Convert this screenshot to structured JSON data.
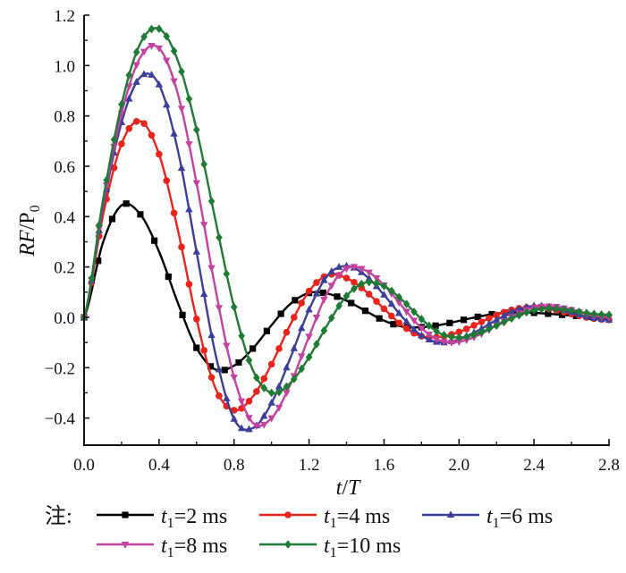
{
  "chart_data": {
    "type": "line",
    "title": "",
    "xlabel": "t/T",
    "ylabel": "RF/P0",
    "xlabel_parts": {
      "italic": "t",
      "slash": "/",
      "italic2": "T"
    },
    "ylabel_parts": {
      "italic": "RF",
      "slash": "/",
      "roman": "P",
      "sub": "0"
    },
    "xlim": [
      0.0,
      2.8
    ],
    "ylim": [
      -0.5,
      1.2
    ],
    "xticks": [
      0.0,
      0.4,
      0.8,
      1.2,
      1.6,
      2.0,
      2.4,
      2.8
    ],
    "xtick_labels": [
      "0.0",
      "0.4",
      "0.8",
      "1.2",
      "1.6",
      "2.0",
      "2.4",
      "2.8"
    ],
    "yticks": [
      -0.4,
      -0.2,
      0.0,
      0.2,
      0.4,
      0.6,
      0.8,
      1.0,
      1.2
    ],
    "ytick_labels": [
      "−0.4",
      "−0.2",
      "0.0",
      "0.2",
      "0.4",
      "0.6",
      "0.8",
      "1.0",
      "1.2"
    ],
    "grid": false,
    "legend_position": "bottom",
    "legend_prefix": "注:",
    "x": [
      0.0,
      0.1,
      0.2,
      0.3,
      0.4,
      0.5,
      0.6,
      0.7,
      0.8,
      0.9,
      1.0,
      1.1,
      1.2,
      1.3,
      1.4,
      1.5,
      1.6,
      1.7,
      1.8,
      1.9,
      2.0,
      2.1,
      2.2,
      2.3,
      2.4,
      2.5,
      2.6,
      2.7,
      2.8
    ],
    "series": [
      {
        "name": "t1=2 ms",
        "label_var": "t",
        "label_sub": "1",
        "label_rest": "=2 ms",
        "color": "#000000",
        "marker": "square",
        "marker_step": 0.075,
        "values": [
          0.0,
          0.295,
          0.445,
          0.409,
          0.261,
          0.058,
          -0.121,
          -0.207,
          -0.192,
          -0.124,
          -0.031,
          0.053,
          0.097,
          0.094,
          0.066,
          0.026,
          -0.013,
          -0.037,
          -0.039,
          -0.03,
          -0.014,
          0.002,
          0.015,
          0.02,
          0.018,
          0.013,
          0.007,
          0.002,
          0.0
        ]
      },
      {
        "name": "t1=4 ms",
        "label_var": "t",
        "label_sub": "1",
        "label_rest": "=4 ms",
        "color": "#e8241c",
        "marker": "circle",
        "marker_step": 0.04,
        "values": [
          0.0,
          0.402,
          0.689,
          0.779,
          0.648,
          0.348,
          -0.007,
          -0.28,
          -0.369,
          -0.315,
          -0.186,
          -0.029,
          0.104,
          0.168,
          0.156,
          0.105,
          0.034,
          -0.034,
          -0.075,
          -0.077,
          -0.058,
          -0.025,
          0.009,
          0.033,
          0.04,
          0.031,
          0.013,
          -0.003,
          -0.01
        ]
      },
      {
        "name": "t1=6 ms",
        "label_var": "t",
        "label_sub": "1",
        "label_rest": "=6 ms",
        "color": "#3b3f98",
        "marker": "triangle-up",
        "marker_step": 0.04,
        "values": [
          0.0,
          0.432,
          0.774,
          0.954,
          0.924,
          0.664,
          0.26,
          -0.143,
          -0.404,
          -0.44,
          -0.34,
          -0.162,
          0.03,
          0.167,
          0.204,
          0.167,
          0.089,
          -0.001,
          -0.073,
          -0.1,
          -0.087,
          -0.053,
          -0.01,
          0.027,
          0.045,
          0.039,
          0.02,
          -0.001,
          -0.01
        ]
      },
      {
        "name": "t1=8 ms",
        "label_var": "t",
        "label_sub": "1",
        "label_rest": "=8 ms",
        "color": "#c2439e",
        "marker": "triangle-down",
        "marker_step": 0.04,
        "values": [
          0.0,
          0.445,
          0.81,
          1.033,
          1.069,
          0.888,
          0.534,
          0.116,
          -0.238,
          -0.419,
          -0.4,
          -0.267,
          -0.076,
          0.101,
          0.194,
          0.187,
          0.128,
          0.041,
          -0.043,
          -0.093,
          -0.097,
          -0.072,
          -0.032,
          0.01,
          0.039,
          0.044,
          0.03,
          0.009,
          0.0
        ]
      },
      {
        "name": "t1=10 ms",
        "label_var": "t",
        "label_sub": "1",
        "label_rest": "=10 ms",
        "color": "#1f7a35",
        "marker": "diamond",
        "marker_step": 0.04,
        "values": [
          0.0,
          0.461,
          0.846,
          1.088,
          1.146,
          1.02,
          0.745,
          0.389,
          0.041,
          -0.209,
          -0.3,
          -0.261,
          -0.158,
          -0.027,
          0.085,
          0.138,
          0.124,
          0.067,
          -0.007,
          -0.064,
          -0.08,
          -0.064,
          -0.033,
          0.002,
          0.028,
          0.035,
          0.027,
          0.015,
          0.01
        ]
      }
    ]
  }
}
